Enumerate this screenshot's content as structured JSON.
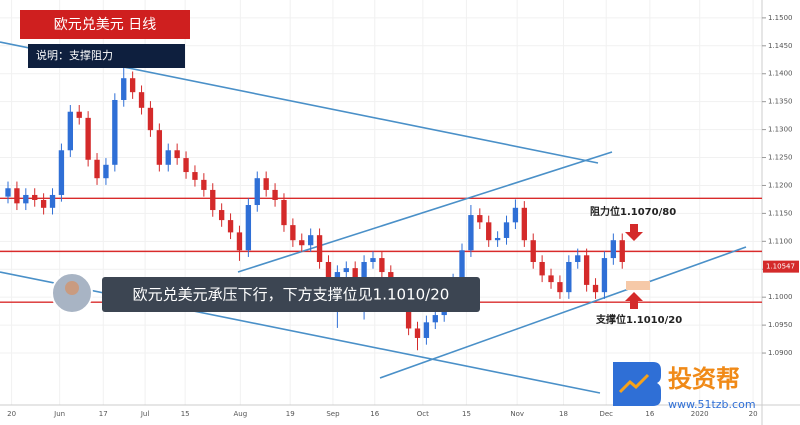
{
  "chart_data": {
    "type": "candlestick",
    "title": "欧元兑美元 日线",
    "subtitle": "说明：支撑阻力",
    "caption": "欧元兑美元承压下行，下方支撑位见1.1010/20",
    "annotations": [
      "阻力位1.1070/80",
      "支撑位1.1010/20"
    ],
    "watermark": {
      "name": "投资帮",
      "url": "www.51tzb.com"
    },
    "up_color": "#2f6fd6",
    "down_color": "#d42a2a",
    "level_color": "#d92b2b",
    "grid": true,
    "xlim": [
      -0.9,
      84.7
    ],
    "ylim": [
      1.0807,
      1.1532
    ],
    "xticks": [
      {
        "value": 0.4,
        "label": "20"
      },
      {
        "value": 5.8,
        "label": "Jun"
      },
      {
        "value": 10.7,
        "label": "17"
      },
      {
        "value": 15.4,
        "label": "Jul"
      },
      {
        "value": 19.9,
        "label": "15"
      },
      {
        "value": 26.1,
        "label": "Aug"
      },
      {
        "value": 31.7,
        "label": "19"
      },
      {
        "value": 36.5,
        "label": "Sep"
      },
      {
        "value": 41.2,
        "label": "16"
      },
      {
        "value": 46.6,
        "label": "Oct"
      },
      {
        "value": 51.5,
        "label": "15"
      },
      {
        "value": 57.2,
        "label": "Nov"
      },
      {
        "value": 62.4,
        "label": "18"
      },
      {
        "value": 67.2,
        "label": "Dec"
      },
      {
        "value": 72.1,
        "label": "16"
      },
      {
        "value": 77.7,
        "label": "2020"
      },
      {
        "value": 83.7,
        "label": "20"
      }
    ],
    "yticks": [
      {
        "value": 1.09,
        "label": "1.0900"
      },
      {
        "value": 1.095,
        "label": "1.0950"
      },
      {
        "value": 1.1,
        "label": "1.1000"
      },
      {
        "value": 1.105,
        "label": "1.1050"
      },
      {
        "value": 1.11,
        "label": "1.1100"
      },
      {
        "value": 1.115,
        "label": "1.1150"
      },
      {
        "value": 1.12,
        "label": "1.1200"
      },
      {
        "value": 1.125,
        "label": "1.1250"
      },
      {
        "value": 1.13,
        "label": "1.1300"
      },
      {
        "value": 1.135,
        "label": "1.1350"
      },
      {
        "value": 1.14,
        "label": "1.1400"
      },
      {
        "value": 1.145,
        "label": "1.1450"
      },
      {
        "value": 1.15,
        "label": "1.1500"
      }
    ],
    "levels": [
      1.1177,
      1.1082,
      1.0991
    ],
    "last_price": 1.10547,
    "open": [
      1.118,
      1.1195,
      1.1168,
      1.1183,
      1.1174,
      1.116,
      1.1183,
      1.1263,
      1.1332,
      1.1321,
      1.1246,
      1.1213,
      1.1237,
      1.1353,
      1.1392,
      1.1367,
      1.1339,
      1.1299,
      1.1237,
      1.1263,
      1.1249,
      1.1224,
      1.121,
      1.1192,
      1.1156,
      1.1138,
      1.1116,
      1.1084,
      1.1165,
      1.1213,
      1.1192,
      1.1174,
      1.1129,
      1.1102,
      1.1093,
      1.1111,
      1.1063,
      1.1027,
      1.1045,
      1.1052,
      1.1022,
      1.1063,
      1.107,
      1.1045,
      1.1022,
      1.0986,
      1.0944,
      1.0927,
      1.0955,
      1.0968,
      1.0995,
      1.103,
      1.1084,
      1.1147,
      1.1134,
      1.1102,
      1.1106,
      1.1134,
      1.116,
      1.1102,
      1.1063,
      1.1039,
      1.1027,
      1.1009,
      1.1063,
      1.1075,
      1.1022,
      1.1009,
      1.107,
      1.1102
    ],
    "high": [
      1.1207,
      1.1207,
      1.1195,
      1.1195,
      1.1186,
      1.1195,
      1.1275,
      1.1344,
      1.1344,
      1.1333,
      1.1258,
      1.1249,
      1.1365,
      1.1412,
      1.1404,
      1.1379,
      1.1351,
      1.1311,
      1.1275,
      1.1275,
      1.1261,
      1.1236,
      1.1222,
      1.1204,
      1.1168,
      1.115,
      1.1128,
      1.1177,
      1.1225,
      1.1225,
      1.1204,
      1.1186,
      1.1141,
      1.1114,
      1.1123,
      1.1123,
      1.1075,
      1.1057,
      1.1064,
      1.1064,
      1.1075,
      1.1082,
      1.1082,
      1.1057,
      1.1034,
      1.0998,
      1.0956,
      1.0967,
      1.098,
      1.1007,
      1.1042,
      1.1096,
      1.1165,
      1.1159,
      1.1146,
      1.1118,
      1.1146,
      1.1175,
      1.1172,
      1.1114,
      1.1075,
      1.1051,
      1.1039,
      1.1075,
      1.1087,
      1.1087,
      1.1034,
      1.1082,
      1.1114,
      1.1114
    ],
    "low": [
      1.1168,
      1.1156,
      1.1156,
      1.1162,
      1.1148,
      1.1148,
      1.1171,
      1.1251,
      1.1309,
      1.1234,
      1.1201,
      1.1201,
      1.1225,
      1.1341,
      1.1355,
      1.1327,
      1.1287,
      1.1225,
      1.1225,
      1.1237,
      1.1212,
      1.1198,
      1.118,
      1.1144,
      1.1126,
      1.1104,
      1.1065,
      1.1072,
      1.1153,
      1.118,
      1.1162,
      1.1117,
      1.109,
      1.1081,
      1.1081,
      1.1051,
      1.1015,
      1.0945,
      1.1033,
      1.101,
      1.096,
      1.1051,
      1.1033,
      1.101,
      1.0974,
      1.0932,
      1.0905,
      1.0915,
      1.0943,
      1.0956,
      1.0983,
      1.1018,
      1.1072,
      1.1122,
      1.109,
      1.109,
      1.1094,
      1.1122,
      1.109,
      1.1051,
      1.1027,
      1.1015,
      1.0997,
      1.0997,
      1.1051,
      1.101,
      1.0997,
      1.0997,
      1.1058,
      1.1051
    ],
    "close": [
      1.1195,
      1.1168,
      1.1183,
      1.1174,
      1.116,
      1.1183,
      1.1263,
      1.1332,
      1.1321,
      1.1246,
      1.1213,
      1.1237,
      1.1353,
      1.1392,
      1.1367,
      1.1339,
      1.1299,
      1.1237,
      1.1263,
      1.1249,
      1.1224,
      1.121,
      1.1192,
      1.1156,
      1.1138,
      1.1116,
      1.1084,
      1.1165,
      1.1213,
      1.1192,
      1.1174,
      1.1129,
      1.1102,
      1.1093,
      1.1111,
      1.1063,
      1.1027,
      1.1045,
      1.1052,
      1.1022,
      1.1063,
      1.107,
      1.1045,
      1.1022,
      1.0986,
      1.0944,
      1.0927,
      1.0955,
      1.0968,
      1.0995,
      1.103,
      1.1084,
      1.1147,
      1.1134,
      1.1102,
      1.1106,
      1.1134,
      1.116,
      1.1102,
      1.1063,
      1.1039,
      1.1027,
      1.1009,
      1.1063,
      1.1075,
      1.1022,
      1.1009,
      1.107,
      1.1102,
      1.1063
    ]
  }
}
